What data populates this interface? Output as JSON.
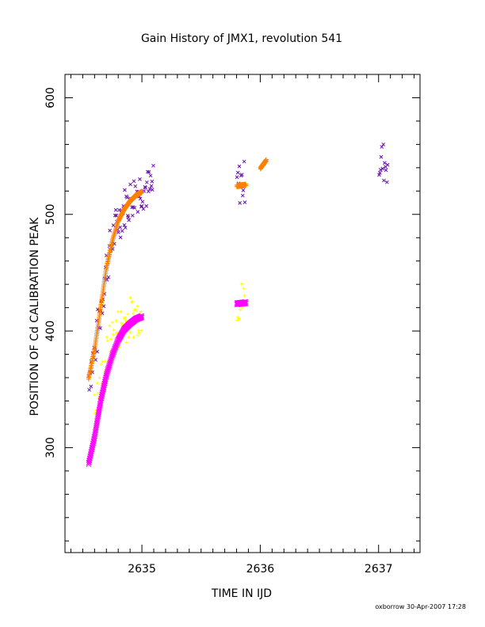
{
  "chart_data": {
    "type": "scatter",
    "title": "Gain History of JMX1, revolution 541",
    "xlabel": "TIME IN IJD",
    "ylabel": "POSITION OF Cd CALIBRATION PEAK",
    "xlim": [
      2634.35,
      2637.35
    ],
    "ylim": [
      210,
      620
    ],
    "x_ticks": [
      2635,
      2636,
      2637
    ],
    "y_ticks": [
      300,
      400,
      500,
      600
    ],
    "grid": false,
    "legend": "none",
    "segments": [
      [
        2634.55,
        2635.88
      ],
      [
        2636.0,
        2637.1
      ]
    ],
    "series": [
      {
        "marker": "x",
        "color": "#6a0dad",
        "role": "measurement",
        "points": [
          [
            2634.55,
            362
          ],
          [
            2634.6,
            380
          ],
          [
            2634.65,
            418
          ],
          [
            2634.7,
            455
          ],
          [
            2634.75,
            478
          ],
          [
            2634.8,
            495
          ],
          [
            2634.85,
            505
          ],
          [
            2634.9,
            512
          ],
          [
            2634.95,
            520
          ],
          [
            2635.0,
            523
          ],
          [
            2635.05,
            521
          ],
          [
            2635.1,
            524
          ],
          [
            2635.2,
            526
          ],
          [
            2635.3,
            527
          ],
          [
            2635.4,
            525
          ],
          [
            2635.5,
            526
          ],
          [
            2635.6,
            527
          ],
          [
            2635.7,
            525
          ],
          [
            2635.8,
            526
          ],
          [
            2635.87,
            528
          ],
          [
            2636.05,
            546
          ],
          [
            2636.15,
            548
          ],
          [
            2636.3,
            546
          ],
          [
            2636.4,
            549
          ],
          [
            2636.5,
            548
          ],
          [
            2636.6,
            547
          ],
          [
            2636.7,
            549
          ],
          [
            2636.8,
            547
          ],
          [
            2636.9,
            545
          ],
          [
            2637.0,
            546
          ],
          [
            2637.08,
            544
          ]
        ]
      },
      {
        "marker": "+",
        "color": "#ff8000",
        "role": "fit",
        "points": [
          [
            2634.55,
            360
          ],
          [
            2634.6,
            385
          ],
          [
            2634.65,
            420
          ],
          [
            2634.7,
            455
          ],
          [
            2634.75,
            478
          ],
          [
            2634.8,
            495
          ],
          [
            2634.85,
            505
          ],
          [
            2634.9,
            512
          ],
          [
            2634.95,
            517
          ],
          [
            2635.0,
            520
          ],
          [
            2635.1,
            523
          ],
          [
            2635.2,
            524
          ],
          [
            2635.4,
            525
          ],
          [
            2635.6,
            525
          ],
          [
            2635.8,
            525
          ],
          [
            2635.88,
            526
          ],
          [
            2636.0,
            540
          ],
          [
            2636.05,
            547
          ],
          [
            2636.2,
            548
          ],
          [
            2636.4,
            548
          ],
          [
            2636.6,
            547
          ],
          [
            2636.8,
            546
          ],
          [
            2637.0,
            544
          ],
          [
            2637.1,
            543
          ]
        ]
      },
      {
        "marker": "+",
        "color": "#ffff00",
        "role": "measurement",
        "points": [
          [
            2634.6,
            330
          ],
          [
            2634.65,
            355
          ],
          [
            2634.7,
            378
          ],
          [
            2634.75,
            395
          ],
          [
            2634.8,
            402
          ],
          [
            2634.85,
            408
          ],
          [
            2634.9,
            411
          ],
          [
            2634.95,
            414
          ],
          [
            2635.0,
            416
          ],
          [
            2635.1,
            418
          ],
          [
            2635.2,
            419
          ],
          [
            2635.3,
            420
          ],
          [
            2635.4,
            421
          ],
          [
            2635.5,
            422
          ],
          [
            2635.6,
            423
          ],
          [
            2635.7,
            424
          ],
          [
            2635.8,
            425
          ],
          [
            2635.87,
            426
          ],
          [
            2636.05,
            439
          ],
          [
            2636.15,
            436
          ],
          [
            2636.25,
            435
          ],
          [
            2636.35,
            436
          ],
          [
            2636.45,
            438
          ],
          [
            2636.55,
            441
          ],
          [
            2636.65,
            444
          ],
          [
            2636.75,
            446
          ],
          [
            2636.85,
            445
          ],
          [
            2636.95,
            442
          ],
          [
            2637.05,
            438
          ]
        ]
      },
      {
        "marker": "x",
        "color": "#ff00ff",
        "role": "fit",
        "points": [
          [
            2634.55,
            287
          ],
          [
            2634.6,
            310
          ],
          [
            2634.65,
            340
          ],
          [
            2634.7,
            363
          ],
          [
            2634.75,
            380
          ],
          [
            2634.8,
            393
          ],
          [
            2634.85,
            402
          ],
          [
            2634.9,
            407
          ],
          [
            2634.95,
            411
          ],
          [
            2635.0,
            413
          ],
          [
            2635.1,
            416
          ],
          [
            2635.2,
            418
          ],
          [
            2635.3,
            419
          ],
          [
            2635.4,
            420
          ],
          [
            2635.5,
            421
          ],
          [
            2635.6,
            422
          ],
          [
            2635.7,
            423
          ],
          [
            2635.8,
            424
          ],
          [
            2635.88,
            425
          ],
          [
            2636.0,
            438
          ],
          [
            2636.1,
            437
          ],
          [
            2636.2,
            435
          ],
          [
            2636.3,
            434
          ],
          [
            2636.4,
            435
          ],
          [
            2636.5,
            437
          ],
          [
            2636.6,
            440
          ],
          [
            2636.7,
            443
          ],
          [
            2636.8,
            445
          ],
          [
            2636.9,
            444
          ],
          [
            2637.0,
            440
          ],
          [
            2637.1,
            436
          ]
        ]
      }
    ]
  },
  "footer": {
    "credit": "oxborrow 30-Apr-2007 17:28"
  }
}
